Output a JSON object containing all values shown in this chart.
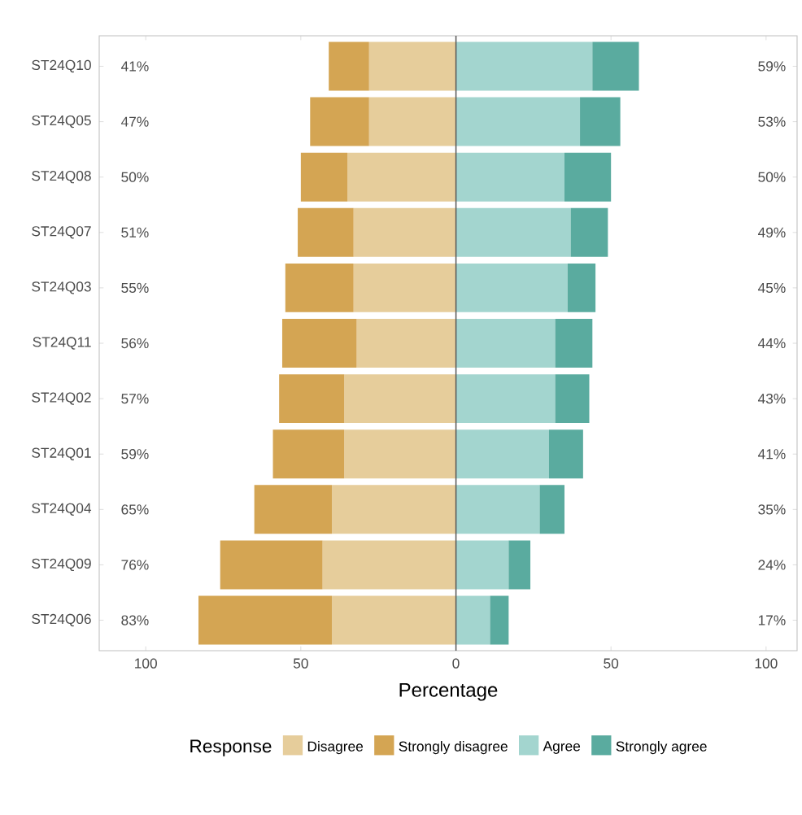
{
  "chart_data": {
    "type": "bar",
    "orientation": "horizontal",
    "stacked": true,
    "categories": [
      "ST24Q10",
      "ST24Q05",
      "ST24Q08",
      "ST24Q07",
      "ST24Q03",
      "ST24Q11",
      "ST24Q02",
      "ST24Q01",
      "ST24Q04",
      "ST24Q09",
      "ST24Q06"
    ],
    "series": [
      {
        "name": "Disagree",
        "color": "#e6cd9b",
        "values": [
          -28,
          -28,
          -35,
          -33,
          -33,
          -32,
          -36,
          -36,
          -40,
          -43,
          -40
        ]
      },
      {
        "name": "Strongly disagree",
        "color": "#d4a553",
        "values": [
          -13,
          -19,
          -15,
          -18,
          -22,
          -24,
          -21,
          -23,
          -25,
          -33,
          -43
        ]
      },
      {
        "name": "Agree",
        "color": "#a3d5cf",
        "values": [
          44,
          40,
          35,
          37,
          36,
          32,
          32,
          30,
          27,
          17,
          11
        ]
      },
      {
        "name": "Strongly agree",
        "color": "#5aab9f",
        "values": [
          15,
          13,
          15,
          12,
          9,
          12,
          11,
          11,
          8,
          7,
          6
        ]
      }
    ],
    "xlabel": "Percentage",
    "legend_title": "Response",
    "legend": "bottom",
    "xlim": [
      -115,
      110
    ],
    "xticks": [
      {
        "value": -100,
        "label": "100"
      },
      {
        "value": -50,
        "label": "50"
      },
      0,
      50,
      100
    ],
    "ref_lines": [
      {
        "axis": "x",
        "value": 0,
        "color": "#555555"
      }
    ],
    "annotations": [
      "41%",
      "47%",
      "50%",
      "51%",
      "55%",
      "56%",
      "57%",
      "59%",
      "65%",
      "76%",
      "83%",
      "59%",
      "53%",
      "50%",
      "49%",
      "45%",
      "44%",
      "43%",
      "41%",
      "35%",
      "24%",
      "17%"
    ]
  }
}
